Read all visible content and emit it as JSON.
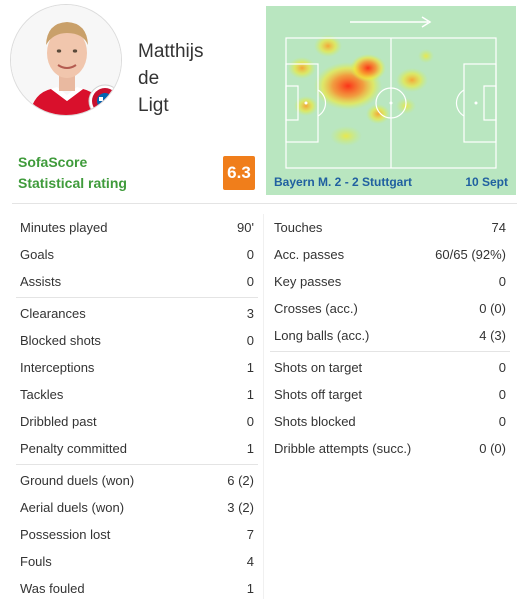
{
  "player": {
    "name_lines": [
      "Matthijs",
      "de",
      "Ligt"
    ]
  },
  "rating": {
    "label_line1": "SofaScore",
    "label_line2": "Statistical rating",
    "value": "6.3",
    "color": "#f07e1b"
  },
  "heatmap": {
    "match": "Bayern M. 2 - 2 Stuttgart",
    "date": "10 Sept",
    "direction_icon": "arrow-right-icon",
    "field_color": "#b9e6c0"
  },
  "stats_left": {
    "group1": [
      {
        "label": "Minutes played",
        "value": "90'"
      },
      {
        "label": "Goals",
        "value": "0"
      },
      {
        "label": "Assists",
        "value": "0"
      }
    ],
    "group2": [
      {
        "label": "Clearances",
        "value": "3"
      },
      {
        "label": "Blocked shots",
        "value": "0"
      },
      {
        "label": "Interceptions",
        "value": "1"
      },
      {
        "label": "Tackles",
        "value": "1"
      },
      {
        "label": "Dribbled past",
        "value": "0"
      },
      {
        "label": "Penalty committed",
        "value": "1"
      }
    ],
    "group3": [
      {
        "label": "Ground duels (won)",
        "value": "6 (2)"
      },
      {
        "label": "Aerial duels (won)",
        "value": "3 (2)"
      },
      {
        "label": "Possession lost",
        "value": "7"
      },
      {
        "label": "Fouls",
        "value": "4"
      },
      {
        "label": "Was fouled",
        "value": "1"
      }
    ]
  },
  "stats_right": {
    "group1": [
      {
        "label": "Touches",
        "value": "74"
      },
      {
        "label": "Acc. passes",
        "value": "60/65 (92%)"
      },
      {
        "label": "Key passes",
        "value": "0"
      },
      {
        "label": "Crosses (acc.)",
        "value": "0 (0)"
      },
      {
        "label": "Long balls (acc.)",
        "value": "4 (3)"
      }
    ],
    "group2": [
      {
        "label": "Shots on target",
        "value": "0"
      },
      {
        "label": "Shots off target",
        "value": "0"
      },
      {
        "label": "Shots blocked",
        "value": "0"
      },
      {
        "label": "Dribble attempts (succ.)",
        "value": "0 (0)"
      }
    ]
  }
}
